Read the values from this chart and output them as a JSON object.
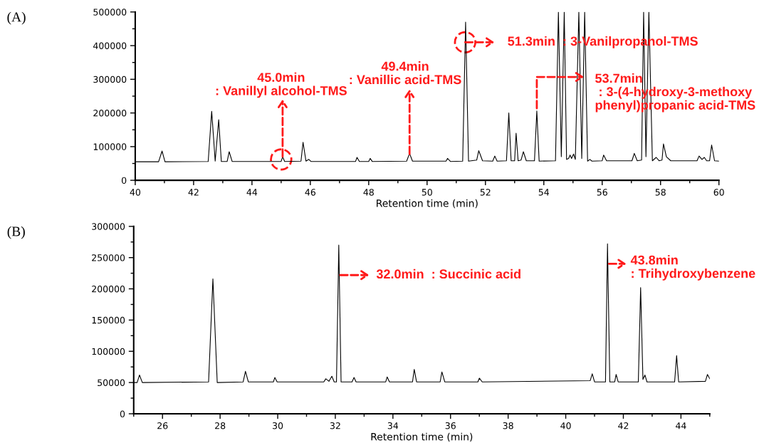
{
  "chart_data": [
    {
      "type": "line",
      "xlabel": "Retention time (min)",
      "grid": false,
      "marker": "none",
      "line_style": "solid",
      "xlim": [
        40,
        60
      ],
      "ylim": [
        0,
        500000
      ],
      "xticks": [
        40,
        {
          "value": 41,
          "label": null
        },
        42,
        {
          "value": 43,
          "label": null
        },
        44,
        {
          "value": 45,
          "label": null
        },
        46,
        {
          "value": 47,
          "label": null
        },
        48,
        {
          "value": 49,
          "label": null
        },
        50,
        {
          "value": 51,
          "label": null
        },
        52,
        {
          "value": 53,
          "label": null
        },
        54,
        {
          "value": 55,
          "label": null
        },
        56,
        {
          "value": 57,
          "label": null
        },
        58,
        {
          "value": 59,
          "label": null
        },
        60
      ],
      "yticks": [
        0,
        {
          "value": 50000,
          "label": null
        },
        100000,
        {
          "value": 150000,
          "label": null
        },
        200000,
        {
          "value": 250000,
          "label": null
        },
        300000,
        {
          "value": 350000,
          "label": null
        },
        400000,
        {
          "value": 450000,
          "label": null
        },
        500000
      ],
      "annotations": [
        "(A)",
        {
          "text": "45.0min\n: Vanillyl alcohol-TMS",
          "x": 45.05,
          "y": 70000
        },
        {
          "text": "49.4min\n: Vanillic acid-TMS",
          "x": 49.4,
          "y": 78000
        },
        {
          "text": "51.3min  : 3-Vanilpropanol-TMS",
          "x": 51.305,
          "y": 410000
        },
        {
          "text": "53.7min\n : 3-(4-hydroxy-3-methoxy\nphenyl)propanic acid-TMS",
          "x": 53.76,
          "y": 206000
        }
      ],
      "series": [
        {
          "color": "#000000",
          "x": [
            40.0,
            40.8,
            40.92,
            41.02,
            42.5,
            42.62,
            42.74,
            42.86,
            42.95,
            43.15,
            43.22,
            43.32,
            45.0,
            45.05,
            45.12,
            45.68,
            45.75,
            45.85,
            45.95,
            46.02,
            47.55,
            47.6,
            47.68,
            48.0,
            48.05,
            48.12,
            49.3,
            49.4,
            49.5,
            50.65,
            50.7,
            50.8,
            51.22,
            51.32,
            51.42,
            51.7,
            51.77,
            51.9,
            52.25,
            52.32,
            52.4,
            52.72,
            52.8,
            52.88,
            53.0,
            53.05,
            53.12,
            53.22,
            53.3,
            53.4,
            53.68,
            53.76,
            53.84,
            54.4,
            54.5,
            54.6,
            54.7,
            54.78,
            54.85,
            54.9,
            54.95,
            55.02,
            55.08,
            55.2,
            55.3,
            55.4,
            55.5,
            55.58,
            55.65,
            56.0,
            56.05,
            56.15,
            57.02,
            57.1,
            57.2,
            57.35,
            57.42,
            57.5,
            57.6,
            57.72,
            57.85,
            57.95,
            58.05,
            58.1,
            58.2,
            58.35,
            59.25,
            59.32,
            59.42,
            59.5,
            59.58,
            59.68,
            59.75,
            59.85,
            60.0
          ],
          "values": [
            55000,
            55000,
            87000,
            55000,
            56000,
            205000,
            57000,
            180000,
            56000,
            56000,
            85000,
            56000,
            56000,
            70000,
            56000,
            57000,
            113000,
            57000,
            62000,
            56000,
            56000,
            68000,
            56000,
            56000,
            65000,
            56000,
            57000,
            80000,
            57000,
            57000,
            65000,
            56000,
            57000,
            470000,
            57000,
            60000,
            88000,
            58000,
            57000,
            72000,
            57000,
            58000,
            200000,
            58000,
            58000,
            140000,
            58000,
            60000,
            85000,
            58000,
            58000,
            206000,
            57000,
            58000,
            500000,
            70000,
            500000,
            62000,
            65000,
            75000,
            65000,
            78000,
            62000,
            500000,
            65000,
            500000,
            57000,
            62000,
            57000,
            58000,
            75000,
            58000,
            58000,
            80000,
            58000,
            60000,
            500000,
            70000,
            500000,
            58000,
            68000,
            58000,
            60000,
            108000,
            70000,
            58000,
            58000,
            72000,
            62000,
            68000,
            58000,
            58000,
            105000,
            58000,
            57000
          ]
        }
      ]
    },
    {
      "type": "line",
      "xlabel": "Retention time (min)",
      "grid": false,
      "marker": "none",
      "line_style": "solid",
      "xlim": [
        25,
        45
      ],
      "ylim": [
        0,
        300000
      ],
      "xticks": [
        {
          "value": 25,
          "label": null
        },
        26,
        {
          "value": 27,
          "label": null
        },
        28,
        {
          "value": 29,
          "label": null
        },
        30,
        {
          "value": 31,
          "label": null
        },
        32,
        {
          "value": 33,
          "label": null
        },
        34,
        {
          "value": 35,
          "label": null
        },
        36,
        {
          "value": 37,
          "label": null
        },
        38,
        {
          "value": 39,
          "label": null
        },
        40,
        {
          "value": 41,
          "label": null
        },
        42,
        {
          "value": 43,
          "label": null
        },
        44,
        {
          "value": 45,
          "label": null
        }
      ],
      "yticks": [
        0,
        {
          "value": 25000,
          "label": null
        },
        50000,
        {
          "value": 75000,
          "label": null
        },
        100000,
        {
          "value": 125000,
          "label": null
        },
        150000,
        {
          "value": 175000,
          "label": null
        },
        200000,
        {
          "value": 225000,
          "label": null
        },
        250000,
        {
          "value": 275000,
          "label": null
        },
        300000
      ],
      "annotations": [
        "(B)",
        {
          "text": "32.0min  : Succinic acid",
          "x": 32.12,
          "y": 222000
        },
        {
          "text": "43.8min\n: Trihydroxybenzene",
          "x": 41.45,
          "y": 240000
        }
      ],
      "series": [
        {
          "color": "#000000",
          "x": [
            25.0,
            25.12,
            25.2,
            25.3,
            27.6,
            27.75,
            27.9,
            28.8,
            28.88,
            28.98,
            29.85,
            29.9,
            29.98,
            31.6,
            31.67,
            31.78,
            31.88,
            31.96,
            32.04,
            32.12,
            32.2,
            32.58,
            32.65,
            32.72,
            33.75,
            33.8,
            33.88,
            34.68,
            34.74,
            34.82,
            35.64,
            35.7,
            35.8,
            36.95,
            37.0,
            37.1,
            40.85,
            40.92,
            41.0,
            41.38,
            41.45,
            41.53,
            41.7,
            41.75,
            41.82,
            42.52,
            42.6,
            42.68,
            42.75,
            42.82,
            43.78,
            43.85,
            43.92,
            44.85,
            44.92,
            45.0
          ],
          "values": [
            50000,
            50000,
            62000,
            50000,
            51000,
            216000,
            50000,
            51000,
            68000,
            51000,
            51000,
            58000,
            51000,
            51000,
            56000,
            52000,
            60000,
            51000,
            51000,
            270000,
            51000,
            51000,
            58000,
            51000,
            51000,
            59000,
            51000,
            51000,
            71000,
            51000,
            51000,
            67000,
            51000,
            51000,
            57000,
            51000,
            53000,
            64000,
            51000,
            51000,
            272000,
            51000,
            51000,
            63000,
            51000,
            51000,
            202000,
            55000,
            62000,
            51000,
            51000,
            93000,
            51000,
            52000,
            63000,
            56000
          ]
        }
      ]
    }
  ]
}
